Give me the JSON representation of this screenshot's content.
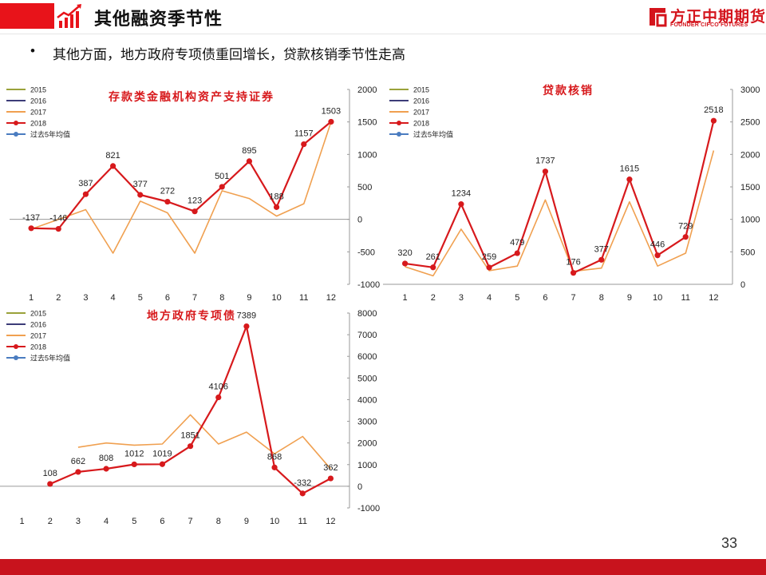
{
  "header": {
    "title": "其他融资季节性",
    "icon": "chart-trend-icon"
  },
  "logo": {
    "name": "方正中期期货",
    "subtitle": "FOUNDER CIFCO FUTURES",
    "icon": "founder-logo-icon"
  },
  "bullet": {
    "symbol": "•",
    "text": "其他方面，地方政府专项债重回增长，贷款核销季节性走高"
  },
  "page": {
    "number": "33"
  },
  "colors": {
    "accent": "#e8131a",
    "y2015": "#9aa23a",
    "y2016": "#3c3c78",
    "y2017": "#f0a050",
    "y2018": "#d7191c",
    "avg": "#4a7cc0"
  },
  "chart_data": [
    {
      "type": "line",
      "title": "存款类金融机构资产支持证券",
      "categories": [
        "1",
        "2",
        "3",
        "4",
        "5",
        "6",
        "7",
        "8",
        "9",
        "10",
        "11",
        "12"
      ],
      "ylim": [
        -1000,
        2000
      ],
      "yticks": [
        "-1000",
        "-500",
        "0",
        "500",
        "1000",
        "1500",
        "2000"
      ],
      "legend": [
        "2015",
        "2016",
        "2017",
        "2018",
        "过去5年均值"
      ],
      "series": [
        {
          "name": "2017",
          "values": [
            -150,
            0,
            150,
            -520,
            280,
            100,
            -520,
            440,
            320,
            50,
            240,
            1500
          ]
        },
        {
          "name": "2018",
          "values": [
            -137,
            -146,
            387,
            821,
            377,
            272,
            123,
            501,
            895,
            188,
            1157,
            1503
          ],
          "labels": [
            "-137",
            "-146",
            "387",
            "821",
            "377",
            "272",
            "123",
            "501",
            "895",
            "188",
            "1157",
            "1503"
          ]
        }
      ]
    },
    {
      "type": "line",
      "title": "贷款核销",
      "categories": [
        "1",
        "2",
        "3",
        "4",
        "5",
        "6",
        "7",
        "8",
        "9",
        "10",
        "11",
        "12"
      ],
      "ylim": [
        0,
        3000
      ],
      "yticks": [
        "0",
        "500",
        "1000",
        "1500",
        "2000",
        "2500",
        "3000"
      ],
      "legend": [
        "2015",
        "2016",
        "2017",
        "2018",
        "过去5年均值"
      ],
      "series": [
        {
          "name": "2017",
          "values": [
            270,
            130,
            850,
            210,
            280,
            1300,
            200,
            250,
            1270,
            280,
            480,
            2060
          ]
        },
        {
          "name": "2018",
          "values": [
            320,
            261,
            1234,
            259,
            479,
            1737,
            176,
            377,
            1615,
            446,
            729,
            2518
          ],
          "labels": [
            "320",
            "261",
            "1234",
            "259",
            "479",
            "1737",
            "176",
            "377",
            "1615",
            "446",
            "729",
            "2518"
          ]
        }
      ]
    },
    {
      "type": "line",
      "title": "地方政府专项债",
      "categories": [
        "1",
        "2",
        "3",
        "4",
        "5",
        "6",
        "7",
        "8",
        "9",
        "10",
        "11",
        "12"
      ],
      "ylim": [
        -1000,
        8000
      ],
      "yticks": [
        "-1000",
        "0",
        "1000",
        "2000",
        "3000",
        "4000",
        "5000",
        "6000",
        "7000",
        "8000"
      ],
      "legend": [
        "2015",
        "2016",
        "2017",
        "2018",
        "过去5年均值"
      ],
      "series": [
        {
          "name": "2017",
          "values": [
            null,
            null,
            1800,
            2000,
            1900,
            1950,
            3300,
            1950,
            2500,
            1500,
            2300,
            800
          ]
        },
        {
          "name": "2018",
          "values": [
            null,
            108,
            662,
            808,
            1012,
            1019,
            1851,
            4106,
            7389,
            868,
            -332,
            362
          ],
          "labels": [
            "",
            "108",
            "662",
            "808",
            "1012",
            "1019",
            "1851",
            "4106",
            "7389",
            "868",
            "-332",
            "362"
          ]
        }
      ]
    }
  ]
}
